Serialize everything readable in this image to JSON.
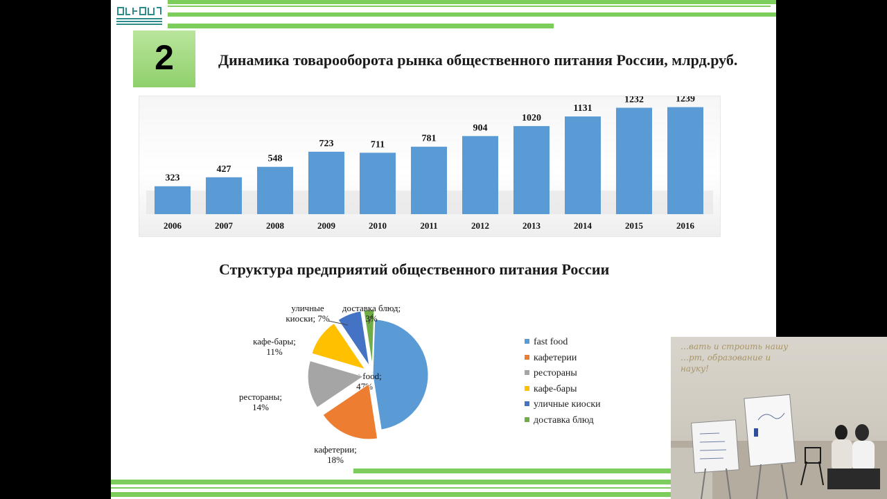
{
  "slide": {
    "number": "2",
    "title_bar_chart": "Динамика товарооборота рынка общественного  питания России, млрд.руб.",
    "title_pie_chart": "Структура предприятий общественного  питания России"
  },
  "colors": {
    "accent_green": "#7ccd5c",
    "bar_blue": "#5a9bd5"
  },
  "chart_data": [
    {
      "type": "bar",
      "title": "Динамика товарооборота рынка общественного  питания России, млрд.руб.",
      "categories": [
        "2006",
        "2007",
        "2008",
        "2009",
        "2010",
        "2011",
        "2012",
        "2013",
        "2014",
        "2015",
        "2016"
      ],
      "values": [
        323,
        427,
        548,
        723,
        711,
        781,
        904,
        1020,
        1131,
        1232,
        1239
      ],
      "value_labels": [
        "323",
        "427",
        "548",
        "723",
        "711",
        "781",
        "904",
        "1020",
        "1131",
        "1232",
        "1239"
      ],
      "ylim": [
        0,
        1300
      ],
      "grid": false,
      "color": "#5a9bd5"
    },
    {
      "type": "pie",
      "title": "Структура предприятий общественного  питания России",
      "legend_position": "right",
      "slices": [
        {
          "name": "fast food",
          "value": 47,
          "color": "#5b9bd5",
          "label_lines": [
            "fast food;",
            "47%"
          ],
          "exploded": false
        },
        {
          "name": "кафетерии",
          "value": 18,
          "color": "#ed7d31",
          "label_lines": [
            "кафетерии;",
            "18%"
          ],
          "exploded": true
        },
        {
          "name": "рестораны",
          "value": 14,
          "color": "#a5a5a5",
          "label_lines": [
            "рестораны;",
            "14%"
          ],
          "exploded": true
        },
        {
          "name": "кафе-бары",
          "value": 11,
          "color": "#ffc000",
          "label_lines": [
            "кафе-бары;",
            "11%"
          ],
          "exploded": true
        },
        {
          "name": "уличные киоски",
          "value": 7,
          "color": "#4472c4",
          "label_lines": [
            "уличные",
            "киоски; 7%"
          ],
          "exploded": true
        },
        {
          "name": "доставка блюд",
          "value": 3,
          "color": "#70ad47",
          "label_lines": [
            "доставка блюд;",
            "3%"
          ],
          "exploded": true
        }
      ]
    }
  ],
  "webcam": {
    "wall_text_lines": [
      "…вать и строить нашу",
      "…рт, образование и науку!"
    ]
  }
}
